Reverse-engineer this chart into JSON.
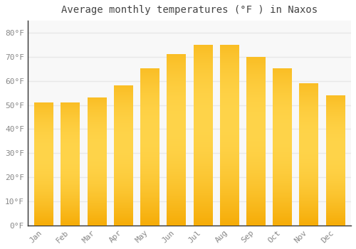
{
  "months": [
    "Jan",
    "Feb",
    "Mar",
    "Apr",
    "May",
    "Jun",
    "Jul",
    "Aug",
    "Sep",
    "Oct",
    "Nov",
    "Dec"
  ],
  "values": [
    51,
    51,
    53,
    58,
    65,
    71,
    75,
    75,
    70,
    65,
    59,
    54
  ],
  "bar_color_dark": "#F5A800",
  "bar_color_light": "#FFD44A",
  "title": "Average monthly temperatures (°F ) in Naxos",
  "ylabel_ticks": [
    "0°F",
    "10°F",
    "20°F",
    "30°F",
    "40°F",
    "50°F",
    "60°F",
    "70°F",
    "80°F"
  ],
  "ytick_values": [
    0,
    10,
    20,
    30,
    40,
    50,
    60,
    70,
    80
  ],
  "ylim": [
    0,
    85
  ],
  "background_color": "#ffffff",
  "plot_bg_color": "#f8f8f8",
  "grid_color": "#e8e8e8",
  "title_fontsize": 10,
  "tick_fontsize": 8,
  "font_family": "monospace",
  "tick_color": "#888888",
  "title_color": "#444444",
  "bar_width": 0.7
}
